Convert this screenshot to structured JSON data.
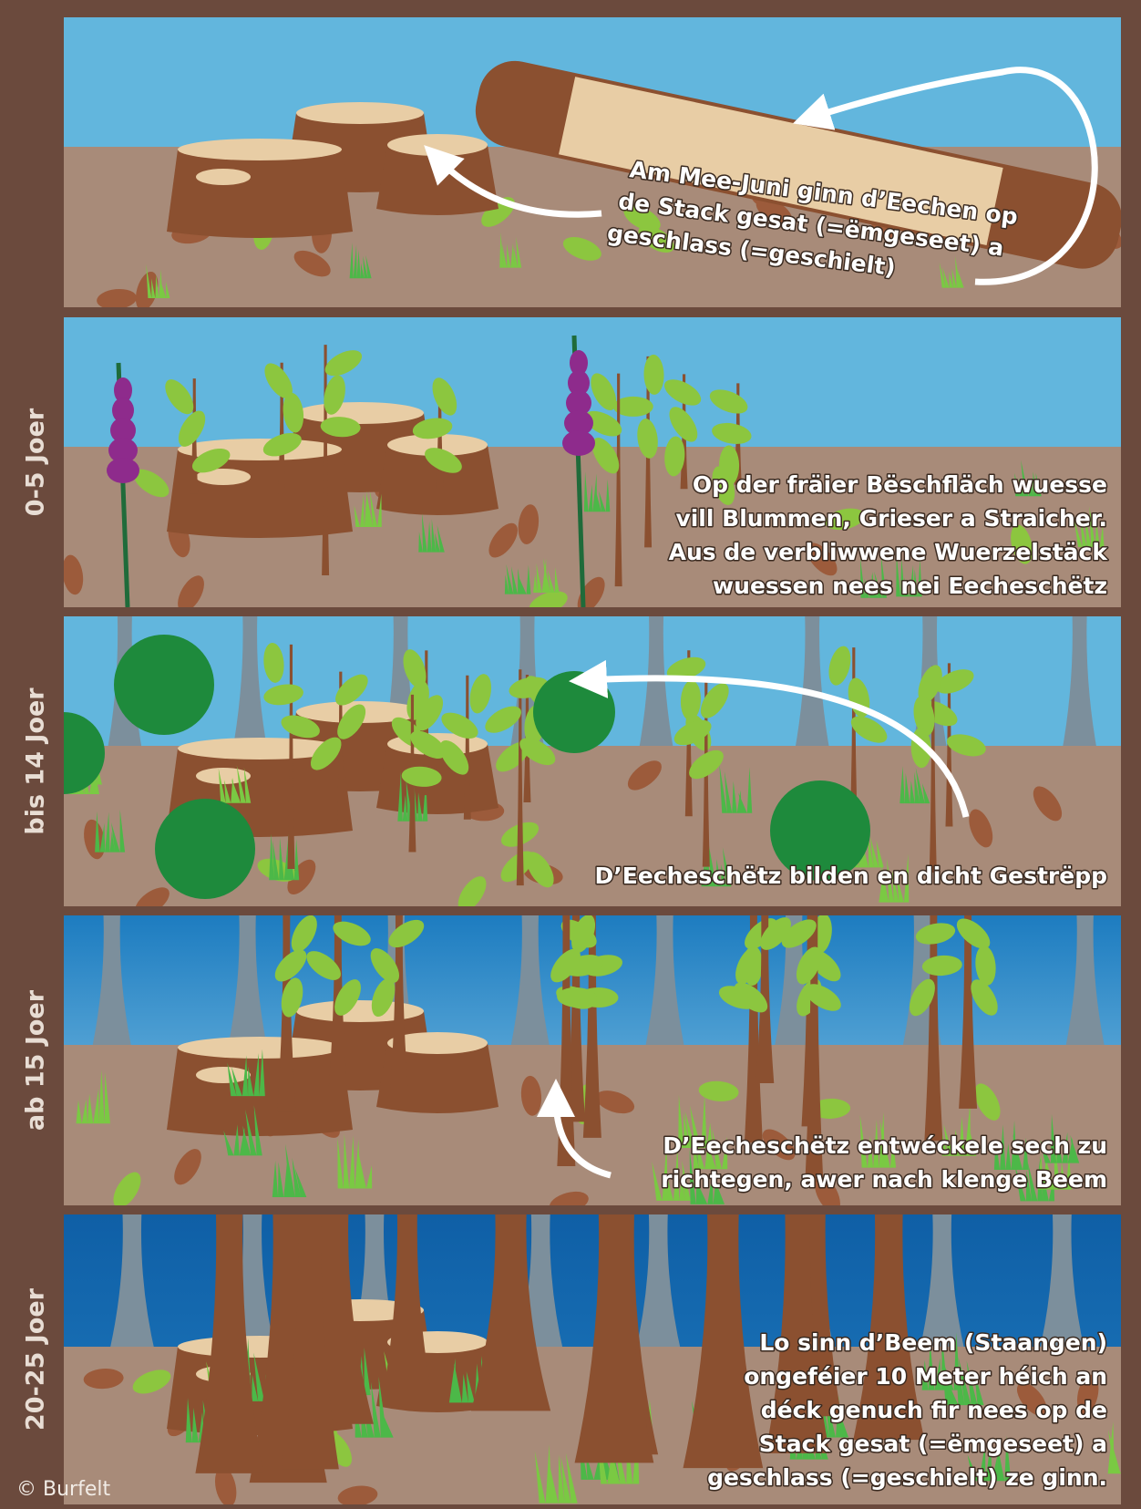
{
  "panels": [
    {
      "lines": [
        "Am Mee-Juni ginn d’Eechen op",
        "de Stack gesat (=ëmgeseet) a",
        "geschlass (=geschielt)"
      ]
    },
    {
      "label": "0-5 Joer",
      "lines": [
        "Op der fräier Bëschfläch wuesse",
        "vill Blummen, Grieser a Straicher.",
        "Aus de verbliwwene Wuerzelstäck",
        "wuessen nees nei Eecheschëtz"
      ]
    },
    {
      "label": "bis 14 Joer",
      "lines": [
        "D’Eecheschëtz bilden en dicht Gestrëpp"
      ]
    },
    {
      "label": "ab 15 Joer",
      "lines": [
        "D’Eecheschëtz entwéckele sech zu",
        "richtegen, awer nach klenge Beem"
      ]
    },
    {
      "label": "20-25 Joer",
      "lines": [
        "Lo sinn d’Beem (Staangen)",
        "ongeféier 10 Meter héich an",
        "déck genuch fir nees op de",
        "Stack gesat (=ëmgeseet) a",
        "geschlass (=geschielt) ze ginn."
      ]
    }
  ],
  "credit": "© Burfelt"
}
